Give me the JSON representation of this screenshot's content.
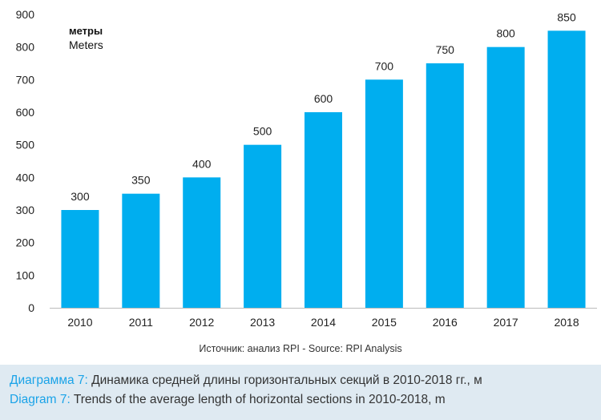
{
  "chart_data": {
    "type": "bar",
    "categories": [
      "2010",
      "2011",
      "2012",
      "2013",
      "2014",
      "2015",
      "2016",
      "2017",
      "2018"
    ],
    "values": [
      300,
      350,
      400,
      500,
      600,
      700,
      750,
      800,
      850
    ],
    "ylim": [
      0,
      900
    ],
    "yticks": [
      0,
      100,
      200,
      300,
      400,
      500,
      600,
      700,
      800,
      900
    ],
    "unit_label_ru": "метры",
    "unit_label_en": "Meters",
    "grid": false,
    "data_labels": true,
    "bar_color": "#00aeef",
    "axis_color": "#bbbbbb"
  },
  "source": "Источник: анализ RPI - Source: RPI Analysis",
  "caption": {
    "ru_label": "Диаграмма 7:",
    "ru_text": " Динамика средней длины горизонтальных секций в 2010-2018 гг., м",
    "en_label": "Diagram 7:",
    "en_text": " Trends of the average length of horizontal sections in 2010-2018, m",
    "label_color": "#1aa3e8",
    "background": "#dfeaf2"
  }
}
